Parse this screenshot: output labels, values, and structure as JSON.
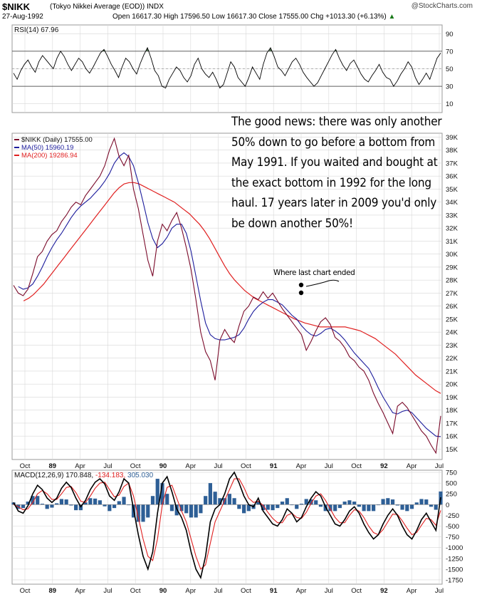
{
  "header": {
    "symbol": "$NIKK",
    "name": "(Tokyo Nikkei Average (EOD))  INDX",
    "brand": "@StockCharts.com",
    "date": "27-Aug-1992",
    "ohlc": "Open 16617.30  High 17596.50  Low 16617.30  Close 17555.00  Chg +1013.30 (+6.13%)",
    "change_arrow": "▲"
  },
  "annotation": {
    "text": "The good news: there was only another 50% down to go before a bottom from May 1991. If you waited and bought at the exact bottom in 1992 for the long haul. 17 years later in 2009 you'd only be down another 50%!",
    "note": "Where last chart ended"
  },
  "colors": {
    "price": "#7a0a2a",
    "ma50": "#1c1c9c",
    "ma200": "#e02020",
    "rsi": "#000000",
    "rsi_fill": "#4f6f4f",
    "macd": "#000000",
    "signal": "#e02020",
    "histogram": "#2e5f96",
    "grid": "#d8d8d8"
  },
  "chart_data": [
    {
      "type": "line",
      "id": "rsi",
      "title": "RSI(14) 67.96",
      "ylim": [
        0,
        100
      ],
      "yticks": [
        "90",
        "70",
        "50",
        "30",
        "10"
      ],
      "ytick_values": [
        90,
        70,
        50,
        30,
        10
      ],
      "reference_lines": [
        70,
        30
      ],
      "current": 67.96,
      "series": [
        {
          "name": "RSI(14)",
          "values": [
            45,
            38,
            48,
            55,
            60,
            52,
            46,
            58,
            65,
            60,
            55,
            50,
            62,
            70,
            64,
            55,
            48,
            55,
            62,
            58,
            50,
            45,
            52,
            60,
            68,
            72,
            64,
            55,
            48,
            40,
            52,
            62,
            58,
            50,
            44,
            56,
            66,
            74,
            62,
            48,
            42,
            30,
            28,
            38,
            45,
            52,
            48,
            40,
            35,
            42,
            55,
            62,
            50,
            44,
            40,
            46,
            38,
            28,
            32,
            45,
            58,
            52,
            40,
            35,
            30,
            40,
            52,
            45,
            38,
            55,
            68,
            74,
            64,
            52,
            48,
            42,
            50,
            58,
            62,
            55,
            46,
            40,
            35,
            30,
            34,
            42,
            50,
            58,
            66,
            72,
            62,
            54,
            48,
            56,
            60,
            52,
            44,
            38,
            35,
            42,
            48,
            55,
            46,
            40,
            38,
            30,
            36,
            44,
            50,
            58,
            52,
            40,
            32,
            38,
            45,
            38,
            50,
            62,
            68
          ]
        }
      ]
    },
    {
      "type": "line",
      "id": "price",
      "title": "$NIKK (Daily) 17555.00",
      "x_labels": [
        "Oct",
        "89",
        "Apr",
        "Jul",
        "Oct",
        "90",
        "Apr",
        "Jul",
        "Oct",
        "91",
        "Apr",
        "Jul",
        "Oct",
        "92",
        "Apr",
        "Jul"
      ],
      "ylim": [
        14200,
        39300
      ],
      "yticks": [
        "39K",
        "38K",
        "37K",
        "36K",
        "35K",
        "34K",
        "33K",
        "32K",
        "31K",
        "30K",
        "29K",
        "28K",
        "27K",
        "26K",
        "25K",
        "24K",
        "23K",
        "22K",
        "21K",
        "20K",
        "19K",
        "18K",
        "17K",
        "16K",
        "15K"
      ],
      "ytick_values": [
        39000,
        38000,
        37000,
        36000,
        35000,
        34000,
        33000,
        32000,
        31000,
        30000,
        29000,
        28000,
        27000,
        26000,
        25000,
        24000,
        23000,
        22000,
        21000,
        20000,
        19000,
        18000,
        17000,
        16000,
        15000
      ],
      "series": [
        {
          "name": "$NIKK (Daily) 17555.00",
          "values": [
            27600,
            27000,
            26800,
            27300,
            28500,
            29800,
            30200,
            31000,
            31500,
            31800,
            32500,
            33000,
            33600,
            34000,
            33800,
            34500,
            35000,
            35500,
            36000,
            36800,
            38000,
            38900,
            37500,
            36800,
            37600,
            35000,
            33500,
            31500,
            29500,
            28300,
            31000,
            32300,
            31800,
            32600,
            33200,
            32000,
            30500,
            28800,
            26500,
            24000,
            22500,
            21800,
            20300,
            23400,
            24200,
            23600,
            23200,
            24500,
            25600,
            26000,
            26700,
            26500,
            27100,
            26600,
            27000,
            26400,
            25800,
            25300,
            24800,
            24300,
            23800,
            22600,
            23300,
            24100,
            24800,
            25100,
            24600,
            23600,
            23300,
            22800,
            22100,
            21800,
            21300,
            21000,
            20300,
            19300,
            18500,
            17800,
            17000,
            16200,
            18300,
            18600,
            18200,
            17600,
            17000,
            16400,
            16000,
            15300,
            14700,
            17555
          ]
        },
        {
          "name": "MA(50) 15960.19",
          "values": [
            null,
            27500,
            27300,
            27400,
            27700,
            28300,
            29000,
            29800,
            30500,
            31100,
            31600,
            32200,
            32800,
            33300,
            33700,
            34000,
            34300,
            34700,
            35100,
            35600,
            36200,
            37000,
            37500,
            37800,
            37500,
            36800,
            35500,
            34000,
            32400,
            31200,
            30500,
            30800,
            31300,
            32000,
            32300,
            32300,
            31600,
            30200,
            28300,
            26400,
            24700,
            23800,
            23500,
            23400,
            23400,
            23500,
            23600,
            23800,
            24300,
            25000,
            25600,
            26000,
            26300,
            26500,
            26500,
            26300,
            26100,
            25700,
            25300,
            25000,
            24500,
            24100,
            23800,
            23700,
            23900,
            24200,
            24300,
            24100,
            23800,
            23400,
            22900,
            22400,
            22000,
            21600,
            21200,
            20500,
            19700,
            19000,
            18400,
            17800,
            17700,
            17900,
            18000,
            17800,
            17400,
            17000,
            16600,
            16300,
            16000,
            15960
          ]
        },
        {
          "name": "MA(200) 19286.94",
          "values": [
            null,
            null,
            26400,
            26600,
            26900,
            27300,
            27700,
            28200,
            28700,
            29200,
            29700,
            30200,
            30700,
            31200,
            31700,
            32200,
            32700,
            33200,
            33700,
            34200,
            34700,
            35100,
            35400,
            35500,
            35500,
            35400,
            35200,
            35000,
            34800,
            34600,
            34400,
            34200,
            34000,
            33700,
            33400,
            33100,
            32700,
            32300,
            31800,
            31200,
            30500,
            29800,
            29100,
            28500,
            28000,
            27600,
            27200,
            26900,
            26600,
            26400,
            26200,
            26000,
            25800,
            25600,
            25400,
            25200,
            25000,
            24850,
            24700,
            24600,
            24500,
            24400,
            24400,
            24400,
            24400,
            24400,
            24400,
            24300,
            24200,
            24100,
            23900,
            23700,
            23500,
            23200,
            22900,
            22600,
            22300,
            21900,
            21500,
            21100,
            20700,
            20400,
            20100,
            19800,
            19500,
            19286
          ]
        }
      ]
    },
    {
      "type": "line",
      "id": "macd",
      "title_prefix": "MACD(12,26,9)",
      "macd_value": "170.848",
      "signal_value": "-134.183",
      "hist_value": "305.030",
      "x_labels": [
        "Oct",
        "89",
        "Apr",
        "Jul",
        "Oct",
        "90",
        "Apr",
        "Jul",
        "Oct",
        "91",
        "Apr",
        "Jul",
        "Oct",
        "92",
        "Apr",
        "Jul"
      ],
      "ylim": [
        -1850,
        800
      ],
      "yticks": [
        "750",
        "500",
        "250",
        "0",
        "-250",
        "-500",
        "-750",
        "-1000",
        "-1250",
        "-1500",
        "-1750"
      ],
      "ytick_values": [
        750,
        500,
        250,
        0,
        -250,
        -500,
        -750,
        -1000,
        -1250,
        -1500,
        -1750
      ],
      "series": [
        {
          "name": "MACD",
          "values": [
            50,
            -150,
            -200,
            -30,
            250,
            450,
            350,
            150,
            50,
            150,
            380,
            520,
            400,
            150,
            -50,
            100,
            350,
            520,
            600,
            480,
            200,
            100,
            300,
            600,
            500,
            -100,
            -700,
            -1200,
            -1500,
            -1100,
            -200,
            500,
            650,
            300,
            -100,
            -300,
            -600,
            -1100,
            -1500,
            -1700,
            -1200,
            -400,
            -100,
            0,
            250,
            600,
            750,
            500,
            200,
            0,
            -50,
            150,
            -150,
            -300,
            -450,
            -500,
            -350,
            -100,
            -200,
            -400,
            -300,
            -50,
            150,
            300,
            200,
            -50,
            -250,
            -450,
            -500,
            -350,
            -150,
            -50,
            -200,
            -450,
            -650,
            -800,
            -700,
            -450,
            -250,
            -100,
            -250,
            -500,
            -700,
            -800,
            -600,
            -350,
            -200,
            -400,
            -600,
            171
          ]
        },
        {
          "name": "Signal",
          "values": [
            0,
            -50,
            -120,
            -100,
            50,
            250,
            330,
            250,
            120,
            120,
            250,
            400,
            420,
            280,
            80,
            50,
            200,
            380,
            500,
            520,
            350,
            180,
            220,
            420,
            500,
            200,
            -300,
            -800,
            -1200,
            -1300,
            -800,
            0,
            400,
            450,
            150,
            -150,
            -400,
            -800,
            -1200,
            -1500,
            -1400,
            -900,
            -400,
            -150,
            100,
            350,
            600,
            600,
            400,
            150,
            50,
            80,
            -20,
            -180,
            -320,
            -420,
            -420,
            -250,
            -200,
            -300,
            -320,
            -180,
            30,
            200,
            250,
            100,
            -100,
            -300,
            -420,
            -420,
            -250,
            -120,
            -150,
            -300,
            -500,
            -650,
            -700,
            -580,
            -400,
            -220,
            -230,
            -380,
            -550,
            -700,
            -650,
            -480,
            -320,
            -350,
            -480,
            -134
          ]
        },
        {
          "name": "Histogram",
          "values": [
            50,
            -100,
            -80,
            70,
            200,
            200,
            20,
            -100,
            -70,
            30,
            130,
            120,
            -20,
            -130,
            -130,
            50,
            150,
            140,
            100,
            -40,
            -150,
            -80,
            80,
            180,
            0,
            -300,
            -400,
            -400,
            -300,
            200,
            600,
            500,
            250,
            -150,
            -250,
            -150,
            -200,
            -300,
            -300,
            -200,
            200,
            500,
            300,
            150,
            150,
            250,
            150,
            -100,
            -200,
            -150,
            -100,
            70,
            -130,
            -120,
            -130,
            -80,
            70,
            150,
            0,
            -100,
            20,
            130,
            120,
            100,
            -50,
            -150,
            -150,
            -150,
            -80,
            70,
            100,
            70,
            -50,
            -150,
            -150,
            -150,
            0,
            130,
            150,
            120,
            -20,
            -120,
            -150,
            -100,
            50,
            130,
            120,
            -50,
            -120,
            305
          ]
        }
      ]
    }
  ]
}
